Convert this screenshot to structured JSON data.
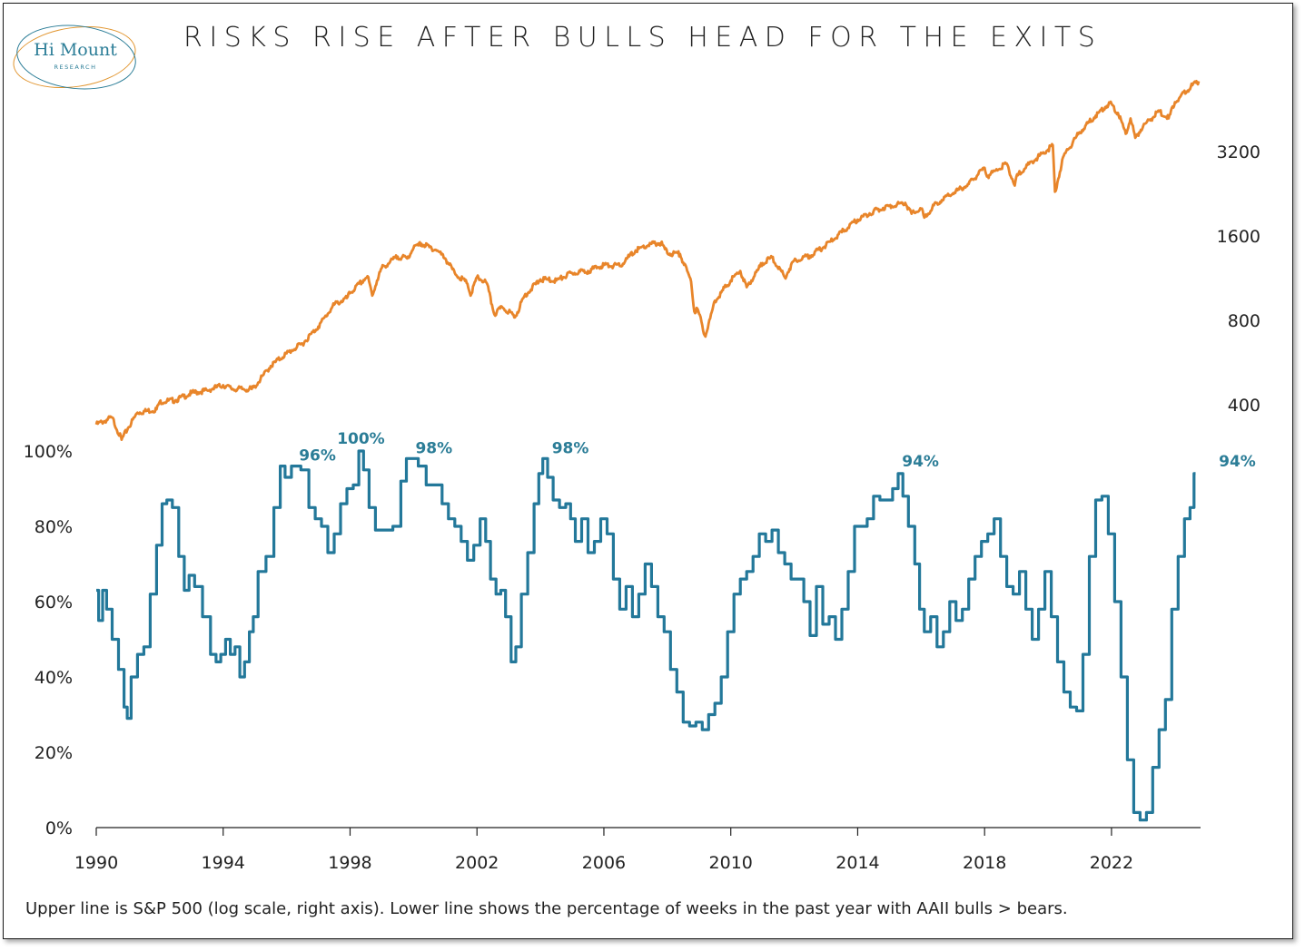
{
  "title": "RISKS RISE AFTER BULLS HEAD FOR THE EXITS",
  "logo": {
    "name": "Hi Mount",
    "sub": "RESEARCH"
  },
  "footnote": "Upper line is S&P 500 (log scale, right axis). Lower line shows the percentage of weeks in the past year with AAII bulls > bears.",
  "colors": {
    "spx": "#e8852a",
    "bulls": "#23789a",
    "peak_label": "#2b7d97"
  },
  "chart_data": {
    "type": "line",
    "x_range": [
      1990,
      2024.75
    ],
    "x_ticks": [
      "1990",
      "1994",
      "1998",
      "2002",
      "2006",
      "2010",
      "2014",
      "2018",
      "2022"
    ],
    "left_axis_ticks": [
      "0%",
      "20%",
      "40%",
      "60%",
      "80%",
      "100%"
    ],
    "left_axis_range": [
      0,
      100
    ],
    "right_axis_ticks": [
      "400",
      "800",
      "1600",
      "3200"
    ],
    "right_axis_scale": "log",
    "right_axis_range": [
      200,
      5600
    ],
    "series": [
      {
        "id": "spx",
        "axis": "right",
        "points": [
          [
            1990.0,
            340
          ],
          [
            1990.5,
            360
          ],
          [
            1990.8,
            300
          ],
          [
            1991.0,
            330
          ],
          [
            1991.3,
            375
          ],
          [
            1991.9,
            385
          ],
          [
            1992.0,
            410
          ],
          [
            1992.5,
            415
          ],
          [
            1993.0,
            440
          ],
          [
            1993.5,
            450
          ],
          [
            1994.0,
            470
          ],
          [
            1994.3,
            455
          ],
          [
            1994.9,
            455
          ],
          [
            1995.0,
            465
          ],
          [
            1995.5,
            550
          ],
          [
            1996.0,
            610
          ],
          [
            1996.5,
            660
          ],
          [
            1997.0,
            760
          ],
          [
            1997.5,
            910
          ],
          [
            1997.9,
            960
          ],
          [
            1998.0,
            1000
          ],
          [
            1998.55,
            1150
          ],
          [
            1998.7,
            980
          ],
          [
            1998.85,
            1110
          ],
          [
            1999.0,
            1230
          ],
          [
            1999.5,
            1350
          ],
          [
            1999.8,
            1330
          ],
          [
            2000.0,
            1450
          ],
          [
            2000.25,
            1500
          ],
          [
            2000.5,
            1460
          ],
          [
            2000.75,
            1420
          ],
          [
            2001.0,
            1330
          ],
          [
            2001.3,
            1180
          ],
          [
            2001.7,
            1080
          ],
          [
            2001.8,
            980
          ],
          [
            2002.0,
            1140
          ],
          [
            2002.3,
            1090
          ],
          [
            2002.55,
            840
          ],
          [
            2002.8,
            890
          ],
          [
            2003.0,
            860
          ],
          [
            2003.2,
            820
          ],
          [
            2003.5,
            980
          ],
          [
            2004.0,
            1120
          ],
          [
            2004.5,
            1110
          ],
          [
            2005.0,
            1180
          ],
          [
            2005.5,
            1200
          ],
          [
            2006.0,
            1260
          ],
          [
            2006.5,
            1250
          ],
          [
            2007.0,
            1420
          ],
          [
            2007.5,
            1500
          ],
          [
            2007.8,
            1510
          ],
          [
            2008.0,
            1390
          ],
          [
            2008.4,
            1380
          ],
          [
            2008.75,
            1100
          ],
          [
            2008.85,
            860
          ],
          [
            2008.95,
            880
          ],
          [
            2009.2,
            700
          ],
          [
            2009.5,
            940
          ],
          [
            2010.0,
            1110
          ],
          [
            2010.3,
            1200
          ],
          [
            2010.5,
            1050
          ],
          [
            2011.0,
            1280
          ],
          [
            2011.3,
            1340
          ],
          [
            2011.7,
            1140
          ],
          [
            2012.0,
            1310
          ],
          [
            2012.5,
            1360
          ],
          [
            2013.0,
            1480
          ],
          [
            2013.5,
            1650
          ],
          [
            2014.0,
            1830
          ],
          [
            2014.5,
            1960
          ],
          [
            2015.0,
            2050
          ],
          [
            2015.5,
            2100
          ],
          [
            2015.7,
            1920
          ],
          [
            2016.0,
            2000
          ],
          [
            2016.1,
            1860
          ],
          [
            2016.5,
            2100
          ],
          [
            2017.0,
            2270
          ],
          [
            2017.5,
            2450
          ],
          [
            2018.0,
            2800
          ],
          [
            2018.1,
            2620
          ],
          [
            2018.7,
            2900
          ],
          [
            2018.95,
            2420
          ],
          [
            2019.0,
            2600
          ],
          [
            2019.5,
            2950
          ],
          [
            2020.0,
            3250
          ],
          [
            2020.15,
            3370
          ],
          [
            2020.22,
            2300
          ],
          [
            2020.5,
            3100
          ],
          [
            2021.0,
            3750
          ],
          [
            2021.5,
            4300
          ],
          [
            2021.95,
            4770
          ],
          [
            2022.2,
            4400
          ],
          [
            2022.45,
            3700
          ],
          [
            2022.6,
            4200
          ],
          [
            2022.75,
            3580
          ],
          [
            2023.0,
            3950
          ],
          [
            2023.5,
            4450
          ],
          [
            2023.8,
            4200
          ],
          [
            2024.0,
            4800
          ],
          [
            2024.5,
            5450
          ],
          [
            2024.75,
            5700
          ]
        ]
      },
      {
        "id": "bulls_pct",
        "axis": "left",
        "points": [
          [
            1990.0,
            63
          ],
          [
            1990.15,
            55
          ],
          [
            1990.25,
            63
          ],
          [
            1990.4,
            58
          ],
          [
            1990.6,
            50
          ],
          [
            1990.8,
            42
          ],
          [
            1990.95,
            32
          ],
          [
            1991.0,
            29
          ],
          [
            1991.2,
            40
          ],
          [
            1991.4,
            46
          ],
          [
            1991.6,
            48
          ],
          [
            1991.8,
            62
          ],
          [
            1992.0,
            75
          ],
          [
            1992.15,
            86
          ],
          [
            1992.3,
            87
          ],
          [
            1992.5,
            85
          ],
          [
            1992.7,
            72
          ],
          [
            1992.85,
            63
          ],
          [
            1993.0,
            67
          ],
          [
            1993.2,
            64
          ],
          [
            1993.5,
            56
          ],
          [
            1993.7,
            46
          ],
          [
            1993.85,
            44
          ],
          [
            1994.0,
            46
          ],
          [
            1994.15,
            50
          ],
          [
            1994.3,
            46
          ],
          [
            1994.45,
            48
          ],
          [
            1994.6,
            40
          ],
          [
            1994.75,
            44
          ],
          [
            1994.9,
            52
          ],
          [
            1995.0,
            56
          ],
          [
            1995.2,
            68
          ],
          [
            1995.5,
            72
          ],
          [
            1995.7,
            85
          ],
          [
            1995.9,
            96
          ],
          [
            1996.0,
            93
          ],
          [
            1996.3,
            96
          ],
          [
            1996.6,
            95
          ],
          [
            1996.8,
            85
          ],
          [
            1997.0,
            82
          ],
          [
            1997.2,
            80
          ],
          [
            1997.4,
            73
          ],
          [
            1997.6,
            78
          ],
          [
            1997.8,
            86
          ],
          [
            1998.0,
            90
          ],
          [
            1998.2,
            91
          ],
          [
            1998.35,
            100
          ],
          [
            1998.5,
            95
          ],
          [
            1998.7,
            85
          ],
          [
            1998.9,
            79
          ],
          [
            1999.2,
            79
          ],
          [
            1999.5,
            80
          ],
          [
            1999.7,
            92
          ],
          [
            1999.85,
            98
          ],
          [
            2000.0,
            98
          ],
          [
            2000.3,
            96
          ],
          [
            2000.5,
            91
          ],
          [
            2000.8,
            91
          ],
          [
            2001.0,
            86
          ],
          [
            2001.2,
            82
          ],
          [
            2001.4,
            80
          ],
          [
            2001.6,
            76
          ],
          [
            2001.8,
            71
          ],
          [
            2002.0,
            75
          ],
          [
            2002.2,
            82
          ],
          [
            2002.35,
            76
          ],
          [
            2002.5,
            66
          ],
          [
            2002.7,
            62
          ],
          [
            2002.8,
            63
          ],
          [
            2003.0,
            56
          ],
          [
            2003.15,
            44
          ],
          [
            2003.3,
            48
          ],
          [
            2003.5,
            62
          ],
          [
            2003.7,
            73
          ],
          [
            2003.9,
            86
          ],
          [
            2004.0,
            94
          ],
          [
            2004.15,
            98
          ],
          [
            2004.3,
            93
          ],
          [
            2004.5,
            87
          ],
          [
            2004.7,
            85
          ],
          [
            2004.9,
            86
          ],
          [
            2005.0,
            82
          ],
          [
            2005.2,
            76
          ],
          [
            2005.4,
            82
          ],
          [
            2005.6,
            73
          ],
          [
            2005.8,
            76
          ],
          [
            2006.0,
            82
          ],
          [
            2006.2,
            78
          ],
          [
            2006.4,
            66
          ],
          [
            2006.6,
            58
          ],
          [
            2006.8,
            64
          ],
          [
            2007.0,
            56
          ],
          [
            2007.2,
            62
          ],
          [
            2007.4,
            70
          ],
          [
            2007.6,
            64
          ],
          [
            2007.8,
            56
          ],
          [
            2008.0,
            52
          ],
          [
            2008.2,
            42
          ],
          [
            2008.4,
            36
          ],
          [
            2008.6,
            28
          ],
          [
            2008.8,
            27
          ],
          [
            2009.0,
            28
          ],
          [
            2009.2,
            26
          ],
          [
            2009.4,
            30
          ],
          [
            2009.6,
            33
          ],
          [
            2009.8,
            40
          ],
          [
            2010.0,
            52
          ],
          [
            2010.2,
            62
          ],
          [
            2010.4,
            66
          ],
          [
            2010.6,
            68
          ],
          [
            2010.8,
            72
          ],
          [
            2011.0,
            78
          ],
          [
            2011.2,
            76
          ],
          [
            2011.4,
            79
          ],
          [
            2011.6,
            73
          ],
          [
            2011.8,
            70
          ],
          [
            2012.0,
            66
          ],
          [
            2012.2,
            66
          ],
          [
            2012.4,
            60
          ],
          [
            2012.6,
            51
          ],
          [
            2012.8,
            64
          ],
          [
            2013.0,
            54
          ],
          [
            2013.2,
            56
          ],
          [
            2013.4,
            50
          ],
          [
            2013.6,
            58
          ],
          [
            2013.8,
            68
          ],
          [
            2014.0,
            80
          ],
          [
            2014.2,
            80
          ],
          [
            2014.4,
            82
          ],
          [
            2014.6,
            88
          ],
          [
            2014.8,
            87
          ],
          [
            2015.0,
            87
          ],
          [
            2015.2,
            90
          ],
          [
            2015.35,
            94
          ],
          [
            2015.5,
            88
          ],
          [
            2015.7,
            80
          ],
          [
            2015.9,
            70
          ],
          [
            2016.0,
            58
          ],
          [
            2016.2,
            52
          ],
          [
            2016.4,
            56
          ],
          [
            2016.6,
            48
          ],
          [
            2016.8,
            52
          ],
          [
            2017.0,
            60
          ],
          [
            2017.2,
            55
          ],
          [
            2017.4,
            58
          ],
          [
            2017.6,
            66
          ],
          [
            2017.8,
            72
          ],
          [
            2018.0,
            76
          ],
          [
            2018.2,
            78
          ],
          [
            2018.4,
            82
          ],
          [
            2018.6,
            72
          ],
          [
            2018.8,
            64
          ],
          [
            2019.0,
            62
          ],
          [
            2019.2,
            68
          ],
          [
            2019.4,
            58
          ],
          [
            2019.6,
            50
          ],
          [
            2019.8,
            58
          ],
          [
            2020.0,
            68
          ],
          [
            2020.2,
            56
          ],
          [
            2020.4,
            44
          ],
          [
            2020.6,
            36
          ],
          [
            2020.8,
            32
          ],
          [
            2021.0,
            31
          ],
          [
            2021.2,
            46
          ],
          [
            2021.4,
            72
          ],
          [
            2021.6,
            87
          ],
          [
            2021.8,
            88
          ],
          [
            2022.0,
            78
          ],
          [
            2022.2,
            60
          ],
          [
            2022.4,
            40
          ],
          [
            2022.6,
            18
          ],
          [
            2022.8,
            4
          ],
          [
            2023.0,
            2
          ],
          [
            2023.2,
            4
          ],
          [
            2023.4,
            16
          ],
          [
            2023.6,
            26
          ],
          [
            2023.8,
            34
          ],
          [
            2024.0,
            58
          ],
          [
            2024.2,
            72
          ],
          [
            2024.4,
            82
          ],
          [
            2024.55,
            85
          ],
          [
            2024.65,
            94
          ]
        ]
      }
    ],
    "annotations": [
      {
        "text": "96%",
        "x": 1996.6,
        "y": 96
      },
      {
        "text": "100%",
        "x": 1998.4,
        "y": 100
      },
      {
        "text": "98%",
        "x": 2000.3,
        "y": 98
      },
      {
        "text": "98%",
        "x": 2004.2,
        "y": 98
      },
      {
        "text": "94%",
        "x": 2015.35,
        "y": 94
      },
      {
        "text": "94%",
        "x": 2024.65,
        "y": 94
      }
    ]
  }
}
